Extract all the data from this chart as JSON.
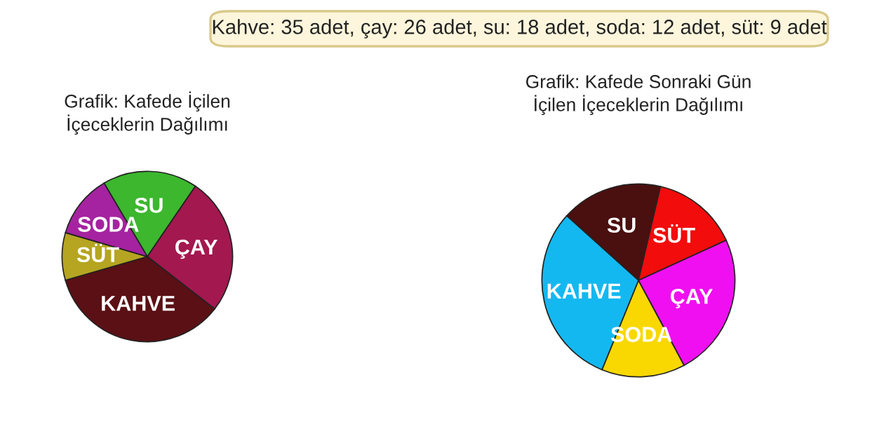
{
  "chart_data": [
    {
      "type": "pie",
      "title": "Grafik: Kafede İçilen\nİçeceklerin Dağılımı",
      "annotations": [
        "Kahve: 35 adet, çay: 26 adet, su: 18 adet, soda: 12 adet, süt: 9 adet"
      ],
      "categories": [
        "SU",
        "ÇAY",
        "KAHVE",
        "SÜT",
        "SODA"
      ],
      "values": [
        18,
        26,
        35,
        9,
        12
      ],
      "colors": [
        "#3cb72e",
        "#a3184f",
        "#5a1014",
        "#b5a521",
        "#a523a0"
      ]
    },
    {
      "type": "pie",
      "title": "Grafik: Kafede Sonraki Gün\nİçilen İçeceklerin Dağılımı",
      "categories": [
        "SU",
        "SÜT",
        "ÇAY",
        "SODA",
        "KAHVE"
      ],
      "values": [
        17,
        14.5,
        24,
        14,
        30.5
      ],
      "colors": [
        "#4a0f0f",
        "#f20c0c",
        "#f00ff0",
        "#f8d800",
        "#14b8f0"
      ]
    }
  ]
}
